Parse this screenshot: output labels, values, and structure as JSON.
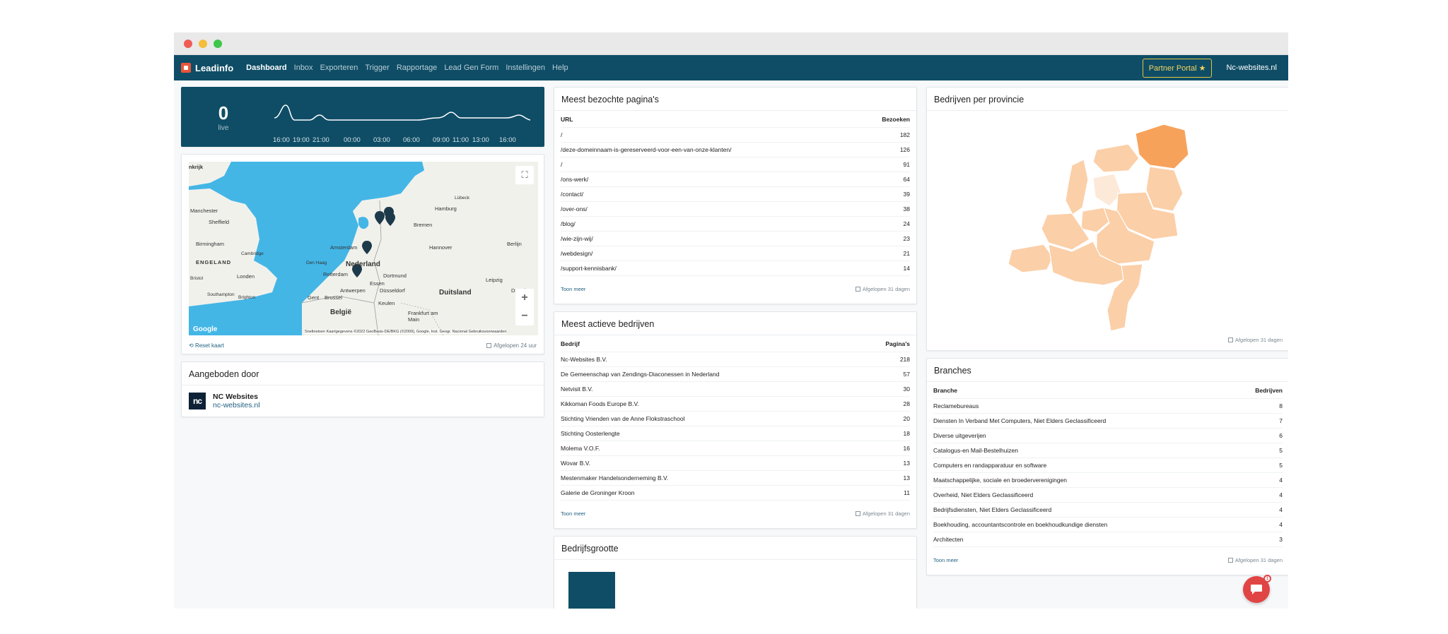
{
  "nav": {
    "brand": "Leadinfo",
    "items": [
      "Dashboard",
      "Inbox",
      "Exporteren",
      "Trigger",
      "Rapportage",
      "Lead Gen Form",
      "Instellingen",
      "Help"
    ],
    "partner_label": "Partner Portal ★",
    "site": "Nc-websites.nl"
  },
  "live": {
    "count": "0",
    "label": "live",
    "ticks": [
      "16:00",
      "19:00",
      "21:00",
      "00:00",
      "03:00",
      "06:00",
      "09:00",
      "11:00",
      "13:00",
      "16:00"
    ]
  },
  "map": {
    "labels": {
      "manchester": "Manchester",
      "sheffield": "Sheffield",
      "birmingham": "Birmingham",
      "cambridge": "Cambridge",
      "engeland": "ENGELAND",
      "londen": "Londen",
      "bristol": "Bristol",
      "southampton": "Southampton",
      "brighton": "Brighton",
      "hamburg": "Hamburg",
      "lubeck": "Lübeck",
      "bremen": "Bremen",
      "hannover": "Hannover",
      "berlijn": "Berlijn",
      "amsterdam": "Amsterdam",
      "denhaag": "Den Haag",
      "rotterdam": "Rotterdam",
      "nederland": "Nederland",
      "dortmund": "Dortmund",
      "essen": "Essen",
      "antwerpen": "Antwerpen",
      "dusseldorf": "Düsseldorf",
      "brussel": "Brussel",
      "gent": "Gent",
      "keulen": "Keulen",
      "leipzig": "Leipzig",
      "dresden": "Dresden",
      "duitsland": "Duitsland",
      "belgie": "België",
      "frankfurt": "Frankfurt am Main",
      "koninkrijk": "nkrijk",
      "google": "Google",
      "attribution": "Sneltoetsen   Kaartgegevens ©2022 GeoBasis-DE/BKG (©2009), Google, Inst. Geogr. Nacional   Gebruiksvoorwaarden"
    },
    "reset": "Reset kaart",
    "period": "Afgelopen 24 uur"
  },
  "offered": {
    "title": "Aangeboden door",
    "logo_text": "nc",
    "name": "NC Websites",
    "url": "nc-websites.nl"
  },
  "pages": {
    "title": "Meest bezochte pagina's",
    "col_url": "URL",
    "col_visits": "Bezoeken",
    "rows": [
      {
        "url": "/",
        "count": "182"
      },
      {
        "url": "/deze-domeinnaam-is-gereserveerd-voor-een-van-onze-klanten/",
        "count": "126"
      },
      {
        "url": "/",
        "count": "91"
      },
      {
        "url": "/ons-werk/",
        "count": "64"
      },
      {
        "url": "/contact/",
        "count": "39"
      },
      {
        "url": "/over-ons/",
        "count": "38"
      },
      {
        "url": "/blog/",
        "count": "24"
      },
      {
        "url": "/wie-zijn-wij/",
        "count": "23"
      },
      {
        "url": "/webdesign/",
        "count": "21"
      },
      {
        "url": "/support-kennisbank/",
        "count": "14"
      }
    ],
    "more": "Toon meer",
    "period": "Afgelopen 31 dagen"
  },
  "companies": {
    "title": "Meest actieve bedrijven",
    "col_company": "Bedrijf",
    "col_pages": "Pagina's",
    "rows": [
      {
        "name": "Nc-Websites B.V.",
        "count": "218"
      },
      {
        "name": "De Gemeenschap van Zendings-Diaconessen in Nederland",
        "count": "57"
      },
      {
        "name": "Netvisit B.V.",
        "count": "30"
      },
      {
        "name": "Kikkoman Foods Europe B.V.",
        "count": "28"
      },
      {
        "name": "Stichting Vrienden van de Anne Flokstraschool",
        "count": "20"
      },
      {
        "name": "Stichting Oosterlengte",
        "count": "18"
      },
      {
        "name": "Molema V.O.F.",
        "count": "16"
      },
      {
        "name": "Wovar B.V.",
        "count": "13"
      },
      {
        "name": "Mestenmaker Handelsonderneming B.V.",
        "count": "13"
      },
      {
        "name": "Galerie de Groninger Kroon",
        "count": "11"
      }
    ],
    "more": "Toon meer",
    "period": "Afgelopen 31 dagen"
  },
  "size": {
    "title": "Bedrijfsgrootte"
  },
  "provinces": {
    "title": "Bedrijven per provincie",
    "period": "Afgelopen 31 dagen",
    "colors": {
      "high": "#f7a25b",
      "mid": "#fbcfa8",
      "low": "#fde9d8"
    }
  },
  "branches": {
    "title": "Branches",
    "col_branch": "Branche",
    "col_companies": "Bedrijven",
    "rows": [
      {
        "name": "Reclamebureaus",
        "count": "8"
      },
      {
        "name": "Diensten In Verband Met Computers, Niet Elders Geclassificeerd",
        "count": "7"
      },
      {
        "name": "Diverse uitgeverijen",
        "count": "6"
      },
      {
        "name": "Catalogus-en Mail-Bestelhuizen",
        "count": "5"
      },
      {
        "name": "Computers en randapparatuur en software",
        "count": "5"
      },
      {
        "name": "Maatschappelijke, sociale en broederverenigingen",
        "count": "4"
      },
      {
        "name": "Overheid, Niet Elders Geclassificeerd",
        "count": "4"
      },
      {
        "name": "Bedrijfsdiensten, Niet Elders Geclassificeerd",
        "count": "4"
      },
      {
        "name": "Boekhouding, accountantscontrole en boekhoudkundige diensten",
        "count": "4"
      },
      {
        "name": "Architecten",
        "count": "3"
      }
    ],
    "more": "Toon meer",
    "period": "Afgelopen 31 dagen"
  },
  "chat": {
    "badge": "1"
  }
}
